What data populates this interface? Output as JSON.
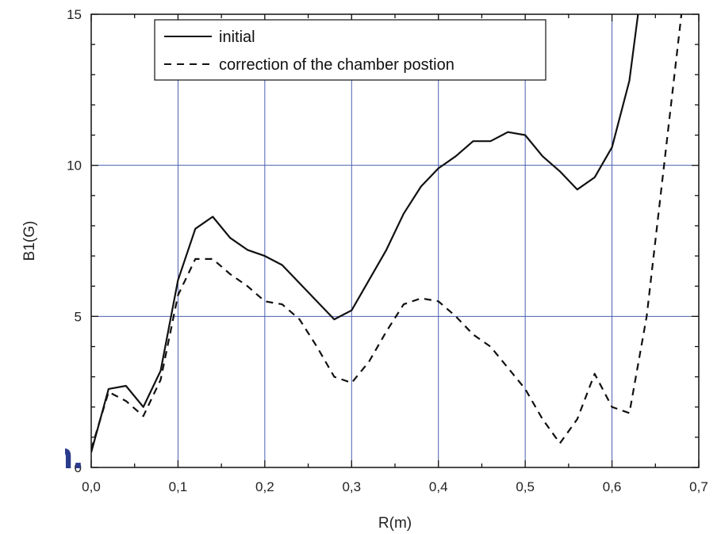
{
  "chart_data": {
    "type": "line",
    "xlabel": "R(m)",
    "ylabel": "B1(G)",
    "xlim": [
      0,
      0.7
    ],
    "ylim": [
      0,
      15
    ],
    "xticks": [
      0,
      0.1,
      0.2,
      0.3,
      0.4,
      0.5,
      0.6,
      0.7
    ],
    "xtick_labels": [
      "0,0",
      "0,1",
      "0,2",
      "0,3",
      "0,4",
      "0,5",
      "0,6",
      "0,7"
    ],
    "yticks": [
      0,
      5,
      10,
      15
    ],
    "ytick_labels": [
      "0",
      "5",
      "10",
      "15"
    ],
    "grid": true,
    "grid_color": "#4a5fb0",
    "legend_position": "top",
    "series": [
      {
        "name": "initial",
        "style": "solid",
        "color": "#111111",
        "x": [
          0,
          0.02,
          0.04,
          0.06,
          0.08,
          0.1,
          0.12,
          0.14,
          0.16,
          0.18,
          0.2,
          0.22,
          0.24,
          0.26,
          0.28,
          0.3,
          0.32,
          0.34,
          0.36,
          0.38,
          0.4,
          0.42,
          0.44,
          0.46,
          0.48,
          0.5,
          0.52,
          0.54,
          0.56,
          0.58,
          0.6,
          0.62,
          0.63
        ],
        "y": [
          0.5,
          2.6,
          2.7,
          2.0,
          3.2,
          6.2,
          7.9,
          8.3,
          7.6,
          7.2,
          7.0,
          6.7,
          6.1,
          5.5,
          4.9,
          5.2,
          6.2,
          7.2,
          8.4,
          9.3,
          9.9,
          10.3,
          10.8,
          10.8,
          11.1,
          11.0,
          10.3,
          9.8,
          9.2,
          9.6,
          10.6,
          12.8,
          15.0
        ]
      },
      {
        "name": "correction of the chamber postion",
        "style": "dashed",
        "color": "#111111",
        "x": [
          0,
          0.02,
          0.04,
          0.06,
          0.08,
          0.1,
          0.12,
          0.14,
          0.16,
          0.18,
          0.2,
          0.22,
          0.24,
          0.26,
          0.28,
          0.3,
          0.32,
          0.34,
          0.36,
          0.38,
          0.4,
          0.42,
          0.44,
          0.46,
          0.48,
          0.5,
          0.52,
          0.54,
          0.56,
          0.58,
          0.6,
          0.62,
          0.64,
          0.66,
          0.68
        ],
        "y": [
          0.6,
          2.5,
          2.2,
          1.7,
          2.9,
          5.7,
          6.9,
          6.9,
          6.4,
          6.0,
          5.5,
          5.4,
          4.9,
          4.0,
          3.0,
          2.8,
          3.5,
          4.5,
          5.4,
          5.6,
          5.5,
          5.0,
          4.4,
          4.0,
          3.3,
          2.6,
          1.6,
          0.8,
          1.6,
          3.1,
          2.0,
          1.8,
          5.0,
          10.0,
          15.0
        ]
      }
    ]
  },
  "artifact_text": "n."
}
